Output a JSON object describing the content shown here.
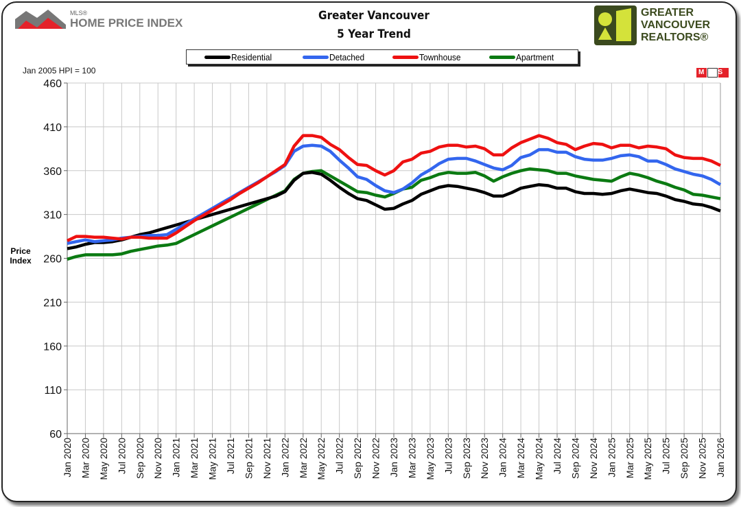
{
  "header": {
    "title_line1": "Greater Vancouver",
    "title_line2": "5 Year Trend",
    "left_logo": {
      "superscript": "MLS®",
      "text": "HOME PRICE INDEX"
    },
    "right_logo": {
      "line1": "GREATER",
      "line2": "VANCOUVER",
      "line3": "REALTORS®"
    },
    "mls_badge": "MLS",
    "note": "Jan 2005 HPI = 100"
  },
  "colors": {
    "Residential": "#000000",
    "Detached": "#3366ee",
    "Townhouse": "#ee1111",
    "Apartment": "#0b7a12",
    "logo_green": "#3b4a1e",
    "logo_yellow": "#d4e23a"
  },
  "chart_data": {
    "type": "line",
    "title": "Greater Vancouver 5 Year Trend",
    "ylabel_line1": "Price",
    "ylabel_line2": "Index",
    "ylim": [
      60,
      460
    ],
    "yticks": [
      60,
      110,
      160,
      210,
      260,
      310,
      360,
      410,
      460
    ],
    "ytick_labels": [
      "60",
      "110",
      "160",
      "210",
      "260",
      "310",
      "360",
      "410",
      "460"
    ],
    "grid": true,
    "legend_position": "top",
    "x": "monthly, Jan 2020 to Jan 2026",
    "xtick_labels": [
      "Jan 2020",
      "Mar 2020",
      "May 2020",
      "Jul 2020",
      "Sep 2020",
      "Nov 2020",
      "Jan 2021",
      "Mar 2021",
      "May 2021",
      "Jul 2021",
      "Sep 2021",
      "Nov 2021",
      "Jan 2022",
      "Mar 2022",
      "May 2022",
      "Jul 2022",
      "Sep 2022",
      "Nov 2022",
      "Jan 2023",
      "Mar 2023",
      "May 2023",
      "Jul 2023",
      "Sep 2023",
      "Nov 2023",
      "Jan 2024",
      "Mar 2024",
      "May 2024",
      "Jul 2024",
      "Sep 2024",
      "Nov 2024",
      "Jan 2025",
      "Mar 2025",
      "May 2025",
      "Jul 2025",
      "Sep 2025",
      "Nov 2025",
      "Jan 2026"
    ],
    "series": [
      {
        "name": "Residential",
        "values": [
          271,
          273,
          276,
          278,
          278,
          279,
          281,
          284,
          287,
          289,
          292,
          295,
          298,
          301,
          304,
          307,
          310,
          313,
          316,
          319,
          322,
          325,
          328,
          331,
          336,
          349,
          357,
          358,
          356,
          349,
          341,
          334,
          328,
          326,
          321,
          316,
          317,
          322,
          326,
          333,
          337,
          341,
          343,
          342,
          340,
          338,
          335,
          331,
          331,
          335,
          340,
          342,
          344,
          343,
          340,
          340,
          336,
          334,
          334,
          333,
          334,
          337,
          339,
          337,
          335,
          334,
          331,
          327,
          325,
          322,
          321,
          318,
          314
        ]
      },
      {
        "name": "Detached",
        "values": [
          277,
          279,
          281,
          279,
          280,
          281,
          283,
          284,
          285,
          286,
          286,
          287,
          293,
          299,
          305,
          311,
          317,
          323,
          329,
          335,
          341,
          347,
          353,
          359,
          366,
          382,
          388,
          389,
          388,
          382,
          372,
          363,
          353,
          350,
          343,
          337,
          335,
          339,
          346,
          355,
          361,
          368,
          373,
          374,
          374,
          371,
          367,
          363,
          361,
          366,
          375,
          378,
          384,
          384,
          381,
          381,
          376,
          373,
          372,
          372,
          374,
          377,
          378,
          376,
          371,
          371,
          367,
          362,
          359,
          356,
          354,
          350,
          344
        ]
      },
      {
        "name": "Townhouse",
        "values": [
          280,
          285,
          285,
          284,
          284,
          283,
          282,
          284,
          284,
          283,
          283,
          283,
          289,
          296,
          303,
          309,
          315,
          321,
          327,
          334,
          340,
          346,
          353,
          360,
          367,
          388,
          400,
          400,
          398,
          390,
          384,
          375,
          367,
          366,
          360,
          355,
          360,
          370,
          373,
          380,
          382,
          387,
          389,
          389,
          387,
          388,
          385,
          378,
          378,
          386,
          392,
          396,
          400,
          397,
          392,
          390,
          384,
          388,
          391,
          390,
          386,
          389,
          389,
          386,
          388,
          387,
          385,
          378,
          375,
          374,
          374,
          371,
          366
        ]
      },
      {
        "name": "Apartment",
        "values": [
          259,
          262,
          264,
          264,
          264,
          264,
          265,
          268,
          270,
          272,
          274,
          275,
          277,
          282,
          287,
          292,
          297,
          302,
          307,
          312,
          317,
          322,
          327,
          332,
          337,
          350,
          357,
          359,
          360,
          354,
          348,
          342,
          336,
          335,
          332,
          330,
          334,
          339,
          341,
          349,
          352,
          356,
          358,
          357,
          357,
          358,
          354,
          348,
          353,
          357,
          360,
          362,
          361,
          360,
          357,
          357,
          354,
          352,
          350,
          349,
          348,
          353,
          357,
          355,
          352,
          348,
          345,
          341,
          338,
          333,
          332,
          330,
          328
        ]
      }
    ]
  }
}
